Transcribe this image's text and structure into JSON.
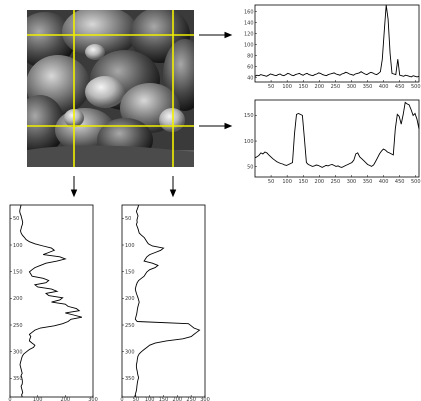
{
  "scanline_figure": {
    "horizontal_lines": [
      {
        "x_ticks": [
          "50",
          "100",
          "150",
          "200",
          "250",
          "300",
          "350",
          "400",
          "450",
          "500"
        ],
        "y_ticks": [
          "160",
          "140",
          "120",
          "100",
          "80",
          "60",
          "40"
        ],
        "profile": [
          40,
          42,
          41,
          43,
          42,
          41,
          40,
          42,
          44,
          43,
          42,
          41,
          43,
          44,
          42,
          41,
          43,
          45,
          44,
          42,
          41,
          43,
          44,
          45,
          43,
          42,
          44,
          45,
          43,
          42,
          41,
          43,
          44,
          46,
          45,
          43,
          42,
          41,
          43,
          44,
          45,
          46,
          44,
          43,
          42,
          44,
          45,
          47,
          46,
          44,
          43,
          42,
          44,
          45,
          46,
          48,
          46,
          44,
          43,
          45,
          47,
          46,
          44,
          43,
          45,
          48,
          70,
          120,
          165,
          140,
          80,
          45,
          44,
          43,
          70,
          42,
          41,
          40,
          42,
          41,
          40,
          39,
          41,
          40,
          39,
          40
        ]
      },
      {
        "x_ticks": [
          "50",
          "100",
          "150",
          "200",
          "250",
          "300",
          "350",
          "400",
          "450",
          "500"
        ],
        "y_ticks": [
          "150",
          "100",
          "50"
        ],
        "profile": [
          60,
          62,
          65,
          70,
          68,
          72,
          70,
          66,
          62,
          58,
          55,
          52,
          50,
          48,
          47,
          45,
          44,
          46,
          48,
          50,
          110,
          150,
          152,
          150,
          148,
          100,
          50,
          46,
          44,
          42,
          43,
          45,
          44,
          42,
          40,
          42,
          44,
          43,
          45,
          46,
          44,
          42,
          43,
          41,
          40,
          42,
          44,
          46,
          48,
          50,
          55,
          68,
          70,
          62,
          58,
          54,
          50,
          46,
          44,
          42,
          45,
          52,
          60,
          68,
          74,
          78,
          76,
          72,
          70,
          68,
          66,
          120,
          150,
          146,
          130,
          150,
          175,
          172,
          170,
          160,
          148,
          152,
          140,
          120
        ]
      }
    ],
    "vertical_lines": [
      {
        "x_ticks": [
          "0",
          "100",
          "200",
          "300"
        ],
        "y_ticks": [
          "50",
          "100",
          "150",
          "200",
          "250",
          "300",
          "350"
        ],
        "profile": [
          40,
          38,
          36,
          35,
          37,
          40,
          42,
          44,
          46,
          45,
          42,
          40,
          38,
          40,
          45,
          52,
          58,
          70,
          90,
          120,
          150,
          160,
          140,
          120,
          180,
          200,
          170,
          130,
          110,
          90,
          80,
          70,
          75,
          80,
          120,
          140,
          130,
          90,
          100,
          150,
          170,
          130,
          140,
          190,
          180,
          150,
          200,
          210,
          240,
          250,
          200,
          230,
          260,
          220,
          210,
          190,
          160,
          110,
          90,
          80,
          70,
          75,
          72,
          70,
          80,
          90,
          85,
          70,
          60,
          50,
          45,
          42,
          40,
          38,
          36,
          38,
          40,
          42,
          44,
          40,
          42,
          44,
          45,
          44,
          40,
          42,
          44,
          46,
          42,
          44
        ]
      },
      {
        "x_ticks": [
          "0",
          "50",
          "100",
          "150",
          "200",
          "250",
          "300"
        ],
        "y_ticks": [
          "50",
          "100",
          "150",
          "200",
          "250",
          "300",
          "350"
        ],
        "profile": [
          60,
          58,
          55,
          52,
          55,
          58,
          56,
          54,
          55,
          52,
          55,
          58,
          60,
          62,
          70,
          80,
          85,
          90,
          95,
          110,
          150,
          140,
          120,
          100,
          90,
          85,
          80,
          110,
          130,
          120,
          100,
          90,
          85,
          80,
          70,
          60,
          55,
          52,
          50,
          48,
          50,
          52,
          55,
          58,
          60,
          62,
          60,
          58,
          56,
          55,
          54,
          52,
          50,
          48,
          55,
          240,
          250,
          260,
          280,
          270,
          260,
          250,
          220,
          160,
          120,
          100,
          90,
          80,
          70,
          62,
          58,
          56,
          55,
          54,
          52,
          52,
          53,
          55,
          56,
          58,
          60,
          58,
          56,
          55,
          54,
          53,
          52,
          50,
          48,
          46
        ]
      }
    ]
  }
}
